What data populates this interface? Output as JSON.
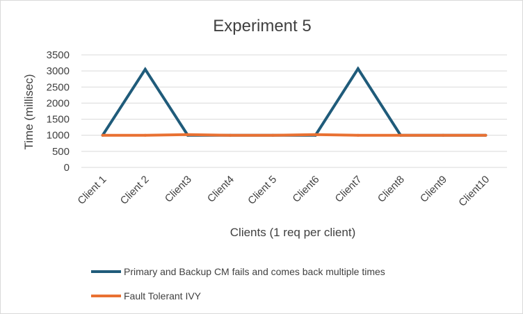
{
  "chart_data": {
    "type": "line",
    "title": "Experiment 5",
    "xlabel": "Clients (1 req per client)",
    "ylabel": "Time (millisec)",
    "ylim": [
      0,
      3500
    ],
    "yticks": [
      0,
      500,
      1000,
      1500,
      2000,
      2500,
      3000,
      3500
    ],
    "categories": [
      "Client 1",
      "Client 2",
      "Client3",
      "Client4",
      "Client 5",
      "Client6",
      "Client7",
      "Client8",
      "Client9",
      "Client10"
    ],
    "grid": "horizontal",
    "legend_position": "bottom",
    "series": [
      {
        "name": "Primary and Backup CM fails and comes back multiple times",
        "color": "#1f5b7a",
        "values": [
          1000,
          3050,
          1000,
          1000,
          1000,
          1000,
          3070,
          1000,
          1000,
          1000
        ]
      },
      {
        "name": "Fault Tolerant IVY",
        "color": "#e97132",
        "values": [
          1000,
          1000,
          1020,
          1000,
          1000,
          1020,
          1000,
          1000,
          1000,
          1000
        ]
      }
    ]
  }
}
